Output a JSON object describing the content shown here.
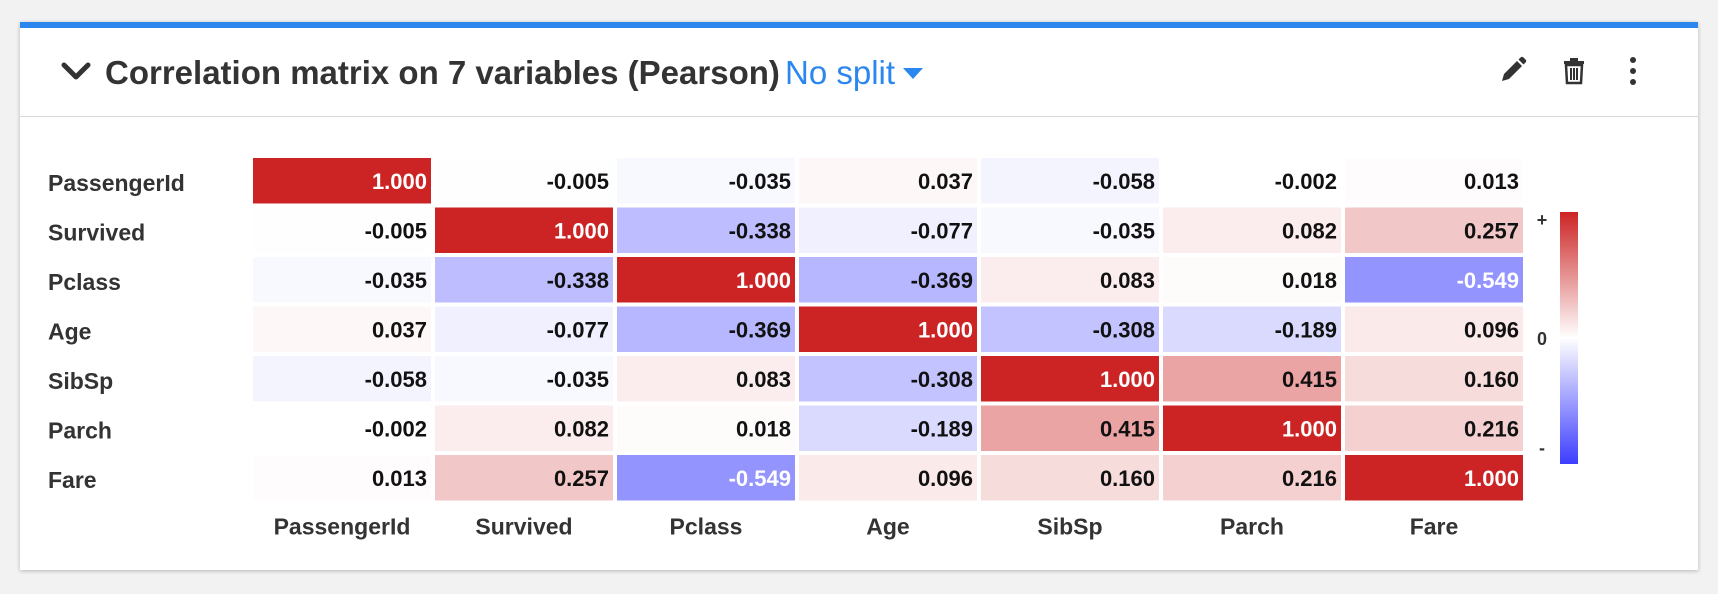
{
  "header": {
    "title": "Correlation matrix on 7 variables (Pearson)",
    "split_label": "No split",
    "icons": [
      "chevron-down-icon",
      "pencil-icon",
      "trash-icon",
      "kebab-menu-icon"
    ]
  },
  "colors": {
    "accent": "#2b87ee",
    "positive": "#cc2424",
    "negative": "#3d3dff",
    "neutral": "#ffffff"
  },
  "chart_data": {
    "type": "heatmap",
    "title": "Correlation matrix on 7 variables (Pearson)",
    "variables": [
      "PassengerId",
      "Survived",
      "Pclass",
      "Age",
      "SibSp",
      "Parch",
      "Fare"
    ],
    "matrix": [
      [
        1.0,
        -0.005,
        -0.035,
        0.037,
        -0.058,
        -0.002,
        0.013
      ],
      [
        -0.005,
        1.0,
        -0.338,
        -0.077,
        -0.035,
        0.082,
        0.257
      ],
      [
        -0.035,
        -0.338,
        1.0,
        -0.369,
        0.083,
        0.018,
        -0.549
      ],
      [
        0.037,
        -0.077,
        -0.369,
        1.0,
        -0.308,
        -0.189,
        0.096
      ],
      [
        -0.058,
        -0.035,
        0.083,
        -0.308,
        1.0,
        0.415,
        0.16
      ],
      [
        -0.002,
        0.082,
        0.018,
        -0.189,
        0.415,
        1.0,
        0.216
      ],
      [
        0.013,
        0.257,
        -0.549,
        0.096,
        0.16,
        0.216,
        1.0
      ]
    ],
    "color_range": [
      -1,
      1
    ],
    "legend": {
      "plus_label": "+",
      "zero_label": "0",
      "minus_label": "-",
      "placement": "right"
    }
  }
}
